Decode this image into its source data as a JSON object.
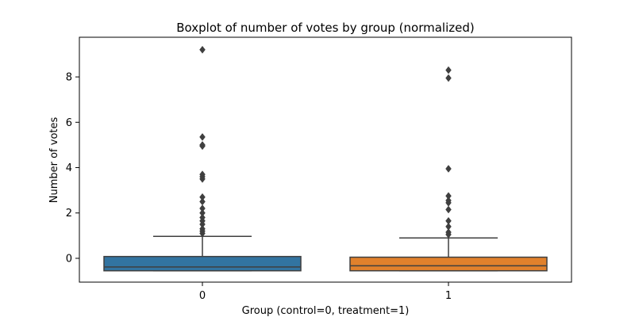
{
  "chart_data": {
    "type": "box",
    "title": "Boxplot of number of votes by group (normalized)",
    "xlabel": "Group (control=0, treatment=1)",
    "ylabel": "Number of votes",
    "categories": [
      "0",
      "1"
    ],
    "yticks": [
      0,
      2,
      4,
      6,
      8
    ],
    "ylim": [
      -1.05,
      9.75
    ],
    "grid": false,
    "series": [
      {
        "category": "0",
        "color": "#3274a1",
        "whisker_low": -0.55,
        "q1": -0.55,
        "median": -0.38,
        "q3": 0.08,
        "whisker_high": 0.97,
        "outliers": [
          9.2,
          5.35,
          5.0,
          4.95,
          3.7,
          3.6,
          3.5,
          2.7,
          2.5,
          2.2,
          2.0,
          1.8,
          1.65,
          1.5,
          1.3,
          1.2,
          1.1
        ]
      },
      {
        "category": "1",
        "color": "#e1812c",
        "whisker_low": -0.55,
        "q1": -0.55,
        "median": -0.33,
        "q3": 0.05,
        "whisker_high": 0.9,
        "outliers": [
          8.3,
          7.95,
          3.95,
          2.75,
          2.55,
          2.45,
          2.15,
          1.65,
          1.4,
          1.15,
          1.05
        ]
      }
    ]
  }
}
